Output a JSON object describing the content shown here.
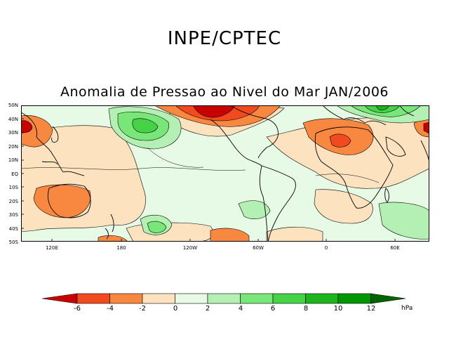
{
  "header": {
    "title": "INPE/CPTEC"
  },
  "map": {
    "title": "Anomalia de Pressao ao Nivel do Mar JAN/2006",
    "lat_labels": [
      "50N",
      "40N",
      "30N",
      "20N",
      "10N",
      "EQ",
      "10S",
      "20S",
      "30S",
      "40S",
      "50S"
    ],
    "lon_labels": [
      "120E",
      "180",
      "120W",
      "60W",
      "0",
      "60E"
    ]
  },
  "legend": {
    "ticks": [
      "-6",
      "-4",
      "-2",
      "0",
      "2",
      "4",
      "6",
      "8",
      "10",
      "12"
    ],
    "unit": "hPa",
    "colors": {
      "lt_-6": "#c80000",
      "-6_-4": "#f04a1e",
      "-4_-2": "#f88840",
      "-2_0": "#fde2c0",
      "0_2": "#e6fae6",
      "2_4": "#b4f0b4",
      "4_6": "#78e678",
      "6_8": "#46d246",
      "8_10": "#1eb41e",
      "10_12": "#009600",
      "gt_12": "#006400"
    }
  }
}
